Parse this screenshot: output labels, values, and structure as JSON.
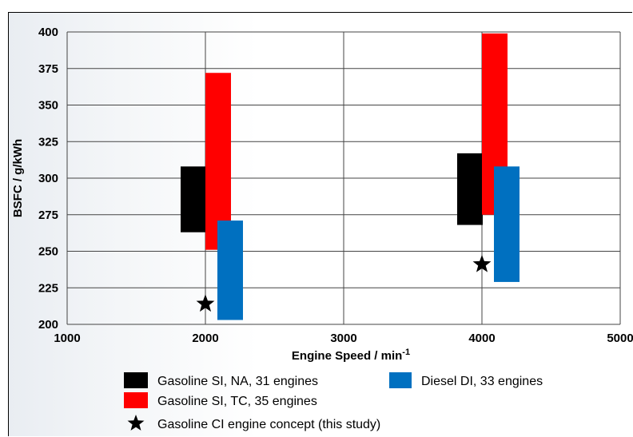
{
  "chart_data": {
    "type": "bar",
    "title": "",
    "xlabel": "Engine Speed / min",
    "xlabel_sup": "-1",
    "ylabel": "BSFC / g/kWh",
    "xlim": [
      1000,
      5000
    ],
    "ylim": [
      200,
      400
    ],
    "x_ticks": [
      "1000",
      "2000",
      "3000",
      "4000",
      "5000"
    ],
    "y_ticks": [
      "200",
      "225",
      "250",
      "275",
      "300",
      "325",
      "350",
      "375",
      "400"
    ],
    "grid": true,
    "legend_position": "bottom",
    "series": [
      {
        "name": "Gasoline SI, NA, 31 engines",
        "color": "#000000",
        "ranges": [
          {
            "x": 2000,
            "low": 263,
            "high": 308
          },
          {
            "x": 4000,
            "low": 268,
            "high": 317
          }
        ]
      },
      {
        "name": "Gasoline SI, TC, 35 engines",
        "color": "#ff0000",
        "ranges": [
          {
            "x": 2000,
            "low": 251,
            "high": 372
          },
          {
            "x": 4000,
            "low": 275,
            "high": 399
          }
        ]
      },
      {
        "name": "Diesel DI, 33 engines",
        "color": "#0070c0",
        "ranges": [
          {
            "x": 2000,
            "low": 203,
            "high": 271
          },
          {
            "x": 4000,
            "low": 229,
            "high": 308
          }
        ]
      }
    ],
    "points": {
      "name": "Gasoline CI engine concept (this study)",
      "marker": "star",
      "values": [
        {
          "x": 2000,
          "y": 214
        },
        {
          "x": 4000,
          "y": 241
        }
      ]
    }
  }
}
